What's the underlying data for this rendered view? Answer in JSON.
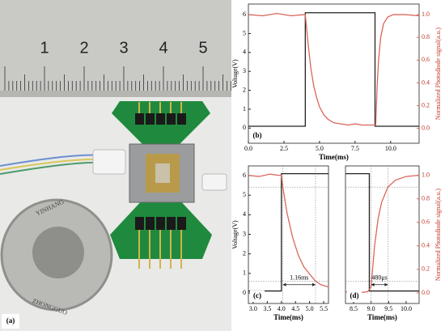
{
  "photo": {
    "label": "(a)",
    "ruler_labels": [
      "1",
      "2",
      "3",
      "4",
      "5"
    ],
    "coin_text": [
      "YINHANG",
      "ZHONGGUO"
    ]
  },
  "chart_data": [
    {
      "type": "line",
      "label": "(b)",
      "x_label": "Time(ms)",
      "y_label": "Voltage(V)",
      "y2_label": "Normalized Photodiode signal(a.u.)",
      "xlim": [
        0,
        12
      ],
      "xticks": [
        {
          "value": 0,
          "label": "0.0"
        },
        2.5,
        {
          "value": 5,
          "label": "5.0"
        },
        7.5,
        {
          "value": 10,
          "label": "10.0"
        }
      ],
      "ylim": [
        -0.8,
        6.56
      ],
      "yticks": [
        0,
        1,
        2,
        3,
        4,
        5,
        6
      ],
      "y2lim": [
        -0.13,
        1.093
      ],
      "y2ticks": [
        {
          "value": 0,
          "label": "0.0"
        },
        0.2,
        0.4,
        0.6,
        0.8,
        {
          "value": 1,
          "label": "1.0"
        }
      ],
      "series": [
        {
          "color": "#222222",
          "x": [
            0,
            4,
            4,
            8.9,
            8.9,
            12
          ],
          "values": [
            0.1,
            0.1,
            6.1,
            6.1,
            0.1,
            0.1
          ]
        },
        {
          "color": "#d9665b",
          "axis": "y2",
          "x": [
            0,
            1,
            2,
            3,
            3.9,
            4.0,
            4.2,
            4.4,
            4.6,
            4.8,
            5.0,
            5.3,
            5.6,
            6.0,
            6.5,
            7,
            7.5,
            8,
            8.5,
            8.95,
            9.05,
            9.15,
            9.3,
            9.5,
            9.8,
            10.2,
            11,
            12
          ],
          "values": [
            1.0,
            0.99,
            1.01,
            0.99,
            1.0,
            1.0,
            0.74,
            0.52,
            0.37,
            0.27,
            0.19,
            0.12,
            0.08,
            0.05,
            0.04,
            0.03,
            0.04,
            0.03,
            0.03,
            0.03,
            0.37,
            0.6,
            0.8,
            0.92,
            0.98,
            1.0,
            1.0,
            0.99
          ]
        }
      ]
    },
    {
      "type": "line",
      "label": "(c)",
      "x_label": "Time(ms)",
      "y_label": "Voltage(V)",
      "xlim": [
        2.83,
        5.67
      ],
      "xticks": [
        {
          "value": 3,
          "label": "3.0"
        },
        3.5,
        {
          "value": 4,
          "label": "4.0"
        },
        4.5,
        {
          "value": 5,
          "label": "5.0"
        },
        5.5
      ],
      "ylim": [
        -0.54,
        6.5
      ],
      "yticks": [
        0,
        1,
        2,
        3,
        4,
        5,
        6
      ],
      "y2lim": [
        -0.09,
        1.08
      ],
      "ref_x": [
        4.05,
        5.21
      ],
      "ref_y2": [
        0.1,
        0.9
      ],
      "annotations": [
        {
          "text": "1.16ms",
          "x": [
            4.05,
            5.21
          ],
          "y2": 0.07
        }
      ],
      "series": [
        {
          "color": "#222222",
          "x": [
            2.83,
            4.0,
            4.0,
            5.67
          ],
          "values": [
            0.1,
            0.1,
            6.1,
            6.1
          ]
        },
        {
          "color": "#d9665b",
          "axis": "y2",
          "x": [
            2.83,
            3.2,
            3.6,
            3.9,
            4.0,
            4.05,
            4.2,
            4.4,
            4.6,
            4.8,
            5.0,
            5.21,
            5.4,
            5.67
          ],
          "values": [
            1.0,
            0.99,
            1.01,
            1.0,
            1.0,
            0.9,
            0.68,
            0.47,
            0.32,
            0.22,
            0.16,
            0.1,
            0.07,
            0.05
          ]
        }
      ]
    },
    {
      "type": "line",
      "label": "(d)",
      "x_label": "Time(ms)",
      "y2_label": "Normalized Photodiode signal(a.u.)",
      "xlim": [
        8.27,
        10.37
      ],
      "xticks": [
        8.5,
        {
          "value": 9,
          "label": "9.0"
        },
        9.5,
        {
          "value": 10,
          "label": "10.0"
        }
      ],
      "ylim": [
        -0.54,
        6.5
      ],
      "y2lim": [
        -0.09,
        1.08
      ],
      "y2ticks": [
        {
          "value": 0,
          "label": "0.0"
        },
        0.2,
        0.4,
        0.6,
        0.8,
        {
          "value": 1,
          "label": "1.0"
        }
      ],
      "ref_x": [
        9.0,
        9.48
      ],
      "ref_y2": [
        0.1,
        0.9
      ],
      "annotations": [
        {
          "text": "480μs",
          "x": [
            9.0,
            9.48
          ],
          "y2": 0.07
        }
      ],
      "series": [
        {
          "color": "#222222",
          "x": [
            8.27,
            8.95,
            8.95,
            10.37
          ],
          "values": [
            6.1,
            6.1,
            0.1,
            0.1
          ]
        },
        {
          "color": "#d9665b",
          "axis": "y2",
          "x": [
            8.27,
            8.6,
            8.9,
            9.0,
            9.1,
            9.2,
            9.3,
            9.48,
            9.7,
            10.0,
            10.37
          ],
          "values": [
            0.01,
            0.0,
            0.01,
            0.05,
            0.4,
            0.63,
            0.77,
            0.9,
            0.96,
            0.99,
            1.0
          ]
        }
      ]
    }
  ]
}
